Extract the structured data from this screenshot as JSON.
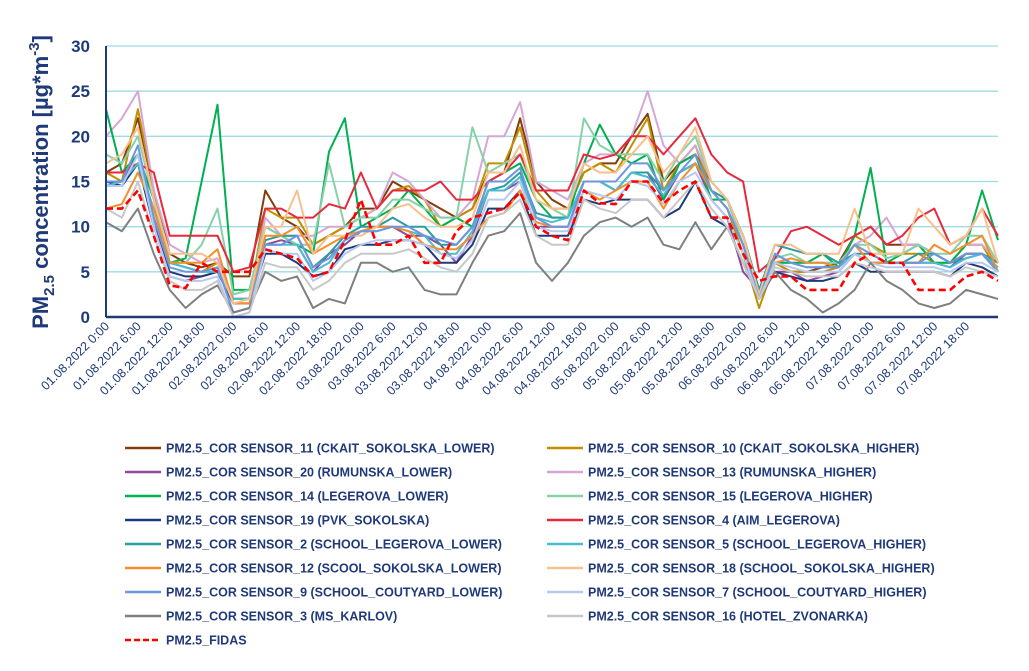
{
  "chart_data": {
    "type": "line",
    "title": "",
    "ylabel": {
      "main": "PM",
      "sub": "2.5",
      "rest": " concentration [µg*m",
      "sup": "-3",
      "end": "]"
    },
    "xlabel": "",
    "ylim": [
      0,
      30
    ],
    "yticks": [
      "0",
      "5",
      "10",
      "15",
      "20",
      "25",
      "30"
    ],
    "grid": true,
    "legend_position": "bottom",
    "x_start": "01.08.2022 0:00",
    "x_step_hours": 3,
    "x_range_hours": [
      0,
      168
    ],
    "xticks": [
      "01.08.2022 0:00",
      "01.08.2022 6:00",
      "01.08.2022 12:00",
      "01.08.2022 18:00",
      "02.08.2022 0:00",
      "02.08.2022 6:00",
      "02.08.2022 12:00",
      "02.08.2022 18:00",
      "03.08.2022 0:00",
      "03.08.2022 6:00",
      "03.08.2022 12:00",
      "03.08.2022 18:00",
      "04.08.2022 0:00",
      "04.08.2022 6:00",
      "04.08.2022 12:00",
      "04.08.2022 18:00",
      "05.08.2022 0:00",
      "05.08.2022 6:00",
      "05.08.2022 12:00",
      "05.08.2022 18:00",
      "06.08.2022 0:00",
      "06.08.2022 6:00",
      "06.08.2022 12:00",
      "06.08.2022 18:00",
      "07.08.2022 0:00",
      "07.08.2022 6:00",
      "07.08.2022 12:00",
      "07.08.2022 18:00"
    ],
    "series": [
      {
        "name": "PM2.5_COR SENSOR_11 (CKAIT_SOKOLSKA_LOWER)",
        "color": "#843c0c",
        "dashed": false,
        "values": [
          16,
          17,
          22,
          14,
          7,
          6,
          5.5,
          6,
          4.5,
          4.5,
          14,
          11,
          10,
          8,
          9,
          10,
          12,
          12,
          15,
          14,
          13,
          12,
          11,
          12,
          16,
          16,
          22,
          15,
          13,
          12,
          16,
          17,
          17,
          20,
          22.5,
          15,
          17,
          18,
          15,
          13,
          9,
          3,
          6,
          5,
          5,
          5.5,
          6,
          9,
          10,
          8,
          8,
          8,
          7,
          6,
          7,
          7,
          6
        ]
      },
      {
        "name": "PM2.5_COR SENSOR_10 (CKAIT_SOKOLSKA_HIGHER)",
        "color": "#c09000",
        "dashed": false,
        "values": [
          16,
          15,
          23,
          14,
          6,
          5.5,
          5,
          6,
          2,
          2,
          12,
          11,
          11,
          8,
          9,
          10,
          11,
          12,
          14,
          14.5,
          13,
          10,
          11,
          12,
          17,
          17,
          21,
          14,
          12,
          12,
          16,
          17,
          16,
          19,
          22,
          14,
          17,
          19,
          14,
          12,
          7,
          1,
          6,
          5,
          5,
          5,
          5.5,
          9,
          8,
          7,
          7,
          7,
          6,
          6,
          8,
          8,
          5
        ]
      },
      {
        "name": "PM2.5_COR SENSOR_20 (RUMUNSKA_LOWER)",
        "color": "#8e4a97",
        "dashed": false,
        "values": [
          15,
          15,
          18,
          11,
          4.5,
          4,
          4.5,
          5,
          2,
          2,
          8,
          8.5,
          8,
          5,
          7,
          8,
          9.5,
          10,
          10,
          9,
          9,
          8,
          6,
          9,
          14,
          14,
          15,
          10,
          10,
          10,
          15,
          15,
          14,
          16,
          16,
          13,
          16,
          17,
          13,
          11,
          5,
          3,
          5,
          5,
          4,
          4.5,
          5,
          7,
          6,
          6,
          6,
          6,
          6,
          5.5,
          7,
          7,
          5
        ]
      },
      {
        "name": "PM2.5_COR SENSOR_13 (RUMUNSKA_HIGHER)",
        "color": "#d6a6d6",
        "dashed": false,
        "values": [
          20,
          22,
          25,
          14,
          8,
          7,
          6,
          6.5,
          2,
          2,
          11,
          9,
          9,
          9,
          10,
          10,
          11,
          12,
          16,
          15,
          13,
          11,
          11,
          13,
          20,
          20,
          23.8,
          15,
          14,
          13,
          17,
          18,
          18,
          20,
          25,
          19,
          17,
          19,
          15,
          13,
          8,
          2,
          6,
          6,
          6,
          6,
          6,
          8,
          9,
          11,
          8,
          8,
          7,
          6,
          8,
          8,
          6
        ]
      },
      {
        "name": "PM2.5_COR SENSOR_14 (LEGEROVA_LOWER)",
        "color": "#00b050",
        "dashed": false,
        "values": [
          23,
          16,
          18,
          13,
          6,
          6.5,
          15,
          23.5,
          3,
          3,
          10,
          9,
          8,
          7,
          18.3,
          22,
          10,
          11,
          12,
          14,
          12,
          10,
          11,
          10,
          15,
          16,
          17,
          13,
          11,
          11,
          17,
          21.3,
          18,
          17,
          18,
          13,
          17,
          18,
          13,
          13,
          9,
          3,
          6,
          6,
          6,
          7,
          5.5,
          9,
          16.5,
          6,
          7,
          8,
          6,
          6,
          8,
          14,
          8.5
        ]
      },
      {
        "name": "PM2.5_COR SENSOR_15 (LEGEROVA_HIGHER)",
        "color": "#88d1a8",
        "dashed": false,
        "values": [
          18,
          17,
          20,
          13,
          6,
          6,
          8,
          12,
          2.5,
          3,
          10,
          9,
          8,
          8,
          17,
          10,
          11,
          11,
          13,
          13,
          12,
          11,
          11,
          21,
          16,
          17,
          18,
          13,
          12,
          11,
          22,
          19,
          18,
          18,
          18,
          15,
          18,
          20,
          15,
          13,
          8,
          2.5,
          6.5,
          7,
          6,
          6,
          6,
          8,
          8,
          6.5,
          7,
          8,
          7,
          7,
          9,
          9,
          6
        ]
      },
      {
        "name": "PM2.5_COR SENSOR_19 (PVK_SOKOLSKA)",
        "color": "#1f3a7a",
        "dashed": false,
        "values": [
          15,
          14.5,
          17,
          10,
          5,
          4.5,
          4.5,
          5,
          1.5,
          1.5,
          7,
          7,
          6,
          4.5,
          5,
          7.5,
          8,
          8,
          8.5,
          8.5,
          8,
          6,
          6,
          8,
          12,
          12,
          14,
          9,
          9,
          9,
          13,
          12.5,
          13,
          13,
          13,
          11,
          12,
          15,
          11,
          10,
          6,
          2,
          5,
          4.5,
          4,
          4,
          4.5,
          6,
          5,
          5,
          5,
          5,
          5,
          4.5,
          6,
          5.5,
          4.5
        ]
      },
      {
        "name": "PM2.5_COR SENSOR_4 (AIM_LEGEROVA)",
        "color": "#e8283c",
        "dashed": false,
        "values": [
          16,
          16,
          17,
          16,
          9,
          9,
          9,
          9,
          5,
          5.5,
          12,
          12,
          11,
          11,
          12.5,
          12,
          16,
          12,
          14,
          14,
          14,
          15,
          13,
          13,
          15,
          16,
          18,
          14,
          14,
          14,
          18,
          17.5,
          18,
          20,
          20,
          18,
          20,
          22,
          18,
          16,
          15,
          5,
          6.5,
          9.5,
          10,
          9,
          8,
          9,
          10,
          8,
          9,
          11,
          12,
          8,
          9,
          12,
          9
        ]
      },
      {
        "name": "PM2.5_COR SENSOR_2 (SCHOOL_LEGEROVA_LOWER)",
        "color": "#2e9ba0",
        "dashed": false,
        "values": [
          15,
          15,
          17,
          11,
          6,
          5.5,
          5,
          5,
          2,
          2,
          8.5,
          9,
          9,
          5.5,
          7,
          9,
          10,
          10,
          11,
          10,
          10,
          8,
          8,
          10,
          14,
          14.5,
          16,
          11.5,
          11,
          11,
          15,
          15,
          14,
          16,
          16,
          14,
          16,
          17,
          14,
          13,
          9,
          3,
          8,
          7.5,
          7,
          7,
          6,
          7,
          7,
          6,
          6,
          7,
          7,
          6,
          6.5,
          7,
          6
        ]
      },
      {
        "name": "PM2.5_COR SENSOR_5 (SCHOOL_LEGEROVA_HIGHER)",
        "color": "#4bbcd0",
        "dashed": false,
        "values": [
          14.5,
          15,
          17,
          12,
          6,
          5.5,
          5,
          5,
          2,
          2,
          8,
          8,
          8,
          5,
          6,
          8.5,
          9.5,
          9.5,
          10,
          9.5,
          9,
          7,
          7,
          9.5,
          14,
          14,
          15.5,
          11,
          10.5,
          11,
          15,
          15,
          14,
          16,
          15.5,
          13.5,
          16,
          17,
          14,
          12,
          8,
          2.5,
          7,
          6,
          5.5,
          5.5,
          5.5,
          7,
          6,
          6,
          6,
          6,
          6,
          5.5,
          6.5,
          7,
          5.5
        ]
      },
      {
        "name": "PM2.5_COR SENSOR_12 (SCOOL_SOKOLSKA_LOWER)",
        "color": "#f28e2b",
        "dashed": false,
        "values": [
          12,
          12.5,
          16,
          12,
          6,
          6,
          6,
          7.5,
          1.5,
          1.5,
          9,
          9,
          10,
          7,
          8,
          9,
          9.5,
          10,
          10,
          9.5,
          8,
          7.5,
          7.5,
          9,
          11,
          11.5,
          14,
          10.5,
          10,
          10,
          14,
          13,
          14,
          15,
          15,
          12,
          15,
          17,
          14,
          12,
          8,
          2.5,
          6,
          6.5,
          6,
          6,
          5.5,
          8,
          6,
          6,
          6,
          6,
          8,
          7,
          8,
          9,
          5
        ]
      },
      {
        "name": "PM2.5_COR SENSOR_18 (SCHOOL_SOKOLSKA_HIGHER)",
        "color": "#f8c08f",
        "dashed": false,
        "values": [
          17,
          18,
          21,
          13,
          7,
          7,
          7,
          6,
          1.5,
          2,
          10,
          10,
          14,
          7,
          9,
          9,
          9,
          10,
          12,
          12.5,
          11,
          10,
          10,
          11,
          16,
          16,
          19,
          13,
          12,
          12,
          17,
          16,
          16,
          18,
          20,
          16,
          18,
          21,
          15,
          13,
          9,
          2.5,
          8,
          8,
          7,
          7,
          7,
          12,
          7,
          7,
          7,
          12,
          10,
          8,
          9,
          12,
          6
        ]
      },
      {
        "name": "PM2.5_COR SENSOR_9 (SCHOOL_COUTYARD_LOWER)",
        "color": "#6d95e0",
        "dashed": false,
        "values": [
          15,
          15,
          19,
          11,
          5.5,
          5,
          5,
          5.5,
          0.5,
          1,
          8,
          8,
          9,
          5.5,
          6.5,
          8.5,
          9.5,
          9.5,
          10,
          10,
          9,
          8.5,
          8,
          10,
          15,
          15,
          16.5,
          11,
          10,
          10,
          15,
          15,
          15,
          17,
          17,
          14,
          16,
          18,
          14,
          12,
          8,
          2,
          7,
          6,
          5.5,
          5.5,
          5.5,
          8,
          7,
          6,
          6,
          6,
          7,
          6,
          7,
          7,
          5
        ]
      },
      {
        "name": "PM2.5_COR SENSOR_7 (SCHOOL_COUTYARD_HIGHER)",
        "color": "#b7c9f0",
        "dashed": false,
        "values": [
          14.5,
          14.5,
          18,
          10,
          4.5,
          4,
          4,
          4.5,
          0,
          0.5,
          7.5,
          7,
          7,
          4,
          5,
          7,
          8,
          8.5,
          8.5,
          8.5,
          8,
          7,
          6.5,
          8.5,
          13,
          13,
          15,
          10,
          9.5,
          9.5,
          14,
          13.5,
          13,
          15,
          14.5,
          12.5,
          15,
          16,
          13,
          11,
          7,
          2,
          6,
          5.5,
          5,
          5,
          5,
          7,
          6,
          5.5,
          5.5,
          5.5,
          5.5,
          5,
          6,
          6,
          5
        ]
      },
      {
        "name": "PM2.5_COR SENSOR_3 (MS_KARLOV)",
        "color": "#7f7f7f",
        "dashed": false,
        "values": [
          10.5,
          9.5,
          12,
          7,
          3,
          1,
          2.5,
          3.5,
          0.5,
          1,
          5,
          4,
          4.5,
          1,
          2,
          1.5,
          6,
          6,
          5,
          5.5,
          3,
          2.5,
          2.5,
          6,
          9,
          9.5,
          11.5,
          6,
          4,
          6,
          9,
          10.5,
          11,
          10,
          11,
          8,
          7.5,
          10.5,
          7.5,
          10,
          6,
          2,
          5,
          3,
          2,
          0.5,
          1.5,
          3,
          6,
          4,
          3,
          1.5,
          1,
          1.5,
          3,
          2.5,
          2
        ]
      },
      {
        "name": "PM2.5_COR SENSOR_16 (HOTEL_ZVONARKA)",
        "color": "#c8c8c8",
        "dashed": false,
        "values": [
          12,
          11,
          15,
          9,
          4,
          3,
          3,
          4,
          0,
          0.5,
          6,
          5.5,
          5.5,
          3,
          4,
          6,
          7,
          7,
          7,
          7.5,
          6.5,
          5.5,
          5,
          7,
          11,
          11.5,
          13,
          9,
          8,
          8,
          13,
          12,
          11.5,
          13,
          13,
          11,
          13,
          15,
          12,
          10,
          6,
          2,
          5.5,
          5,
          4.5,
          4.5,
          4.5,
          6,
          5.5,
          5,
          5,
          5,
          5,
          4.5,
          5.5,
          5,
          4.5
        ]
      },
      {
        "name": "PM2.5_FIDAS",
        "color": "#ff0000",
        "dashed": true,
        "values": [
          12,
          12,
          14,
          9,
          3.5,
          3.2,
          6,
          5,
          5,
          5,
          7.5,
          7,
          6.5,
          4.5,
          5,
          8.5,
          13,
          8,
          8,
          9,
          6,
          6,
          9.5,
          11,
          11.5,
          12,
          13.8,
          10,
          9,
          8.5,
          14,
          12.6,
          12.5,
          15,
          15,
          12.6,
          14,
          15,
          11,
          11,
          7,
          4,
          4.5,
          4.5,
          3,
          3,
          3,
          6,
          7,
          6,
          6,
          3,
          3,
          3,
          4.5,
          5,
          4
        ]
      }
    ]
  }
}
